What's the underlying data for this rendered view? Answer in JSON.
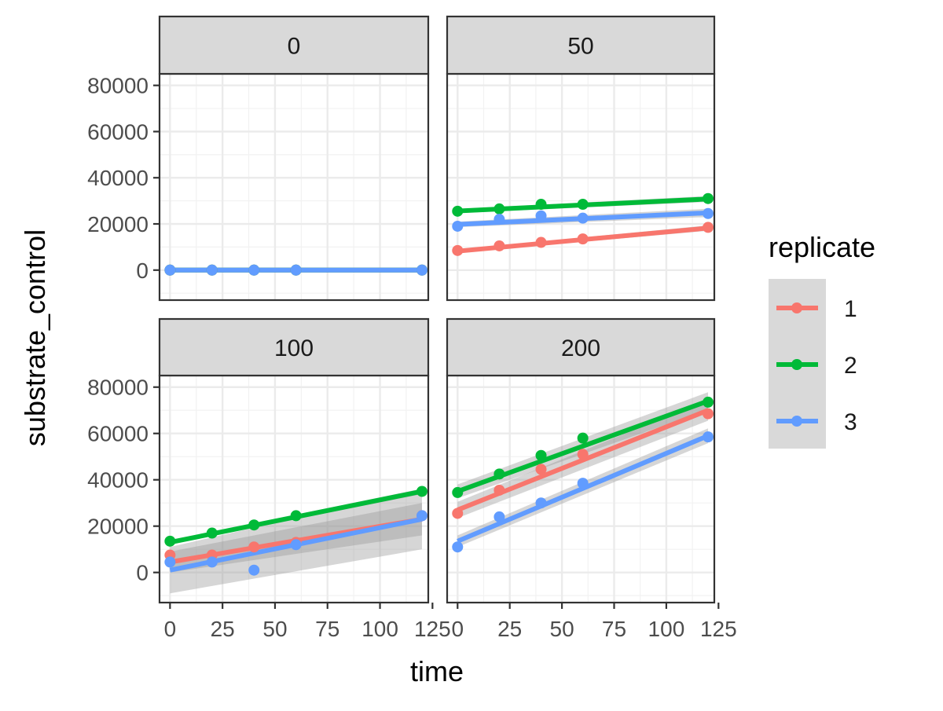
{
  "chart_data": {
    "type": "scatter",
    "faceted": true,
    "xlabel": "time",
    "ylabel": "substrate_control",
    "x_ticks": [
      0,
      25,
      50,
      75,
      100,
      125
    ],
    "y_ticks": [
      0,
      20000,
      40000,
      60000,
      80000
    ],
    "xlim": [
      -5,
      123
    ],
    "ylim": [
      -13000,
      85000
    ],
    "grid": true,
    "legend": {
      "title": "replicate",
      "placement": "right",
      "entries": [
        "1",
        "2",
        "3"
      ],
      "colors": [
        "#F8766D",
        "#00BA38",
        "#619CFF"
      ]
    },
    "facets": [
      {
        "label": "0",
        "series": [
          {
            "name": "1",
            "x": [
              0,
              20,
              40,
              60,
              120
            ],
            "y": [
              0,
              0,
              0,
              0,
              0
            ],
            "fit": [
              0,
              0
            ],
            "band": [
              0,
              0
            ]
          },
          {
            "name": "2",
            "x": [
              0,
              20,
              40,
              60,
              120
            ],
            "y": [
              0,
              0,
              0,
              0,
              0
            ],
            "fit": [
              0,
              0
            ],
            "band": [
              0,
              0
            ]
          },
          {
            "name": "3",
            "x": [
              0,
              20,
              40,
              60,
              120
            ],
            "y": [
              0,
              0,
              0,
              0,
              0
            ],
            "fit": [
              0,
              0
            ],
            "band": [
              0,
              0
            ]
          }
        ]
      },
      {
        "label": "50",
        "series": [
          {
            "name": "1",
            "x": [
              0,
              20,
              40,
              60,
              120
            ],
            "y": [
              8500,
              10500,
              12000,
              13500,
              18500
            ],
            "fit": [
              8200,
              18200
            ],
            "band": [
              700,
              1200
            ]
          },
          {
            "name": "2",
            "x": [
              0,
              20,
              40,
              60,
              120
            ],
            "y": [
              25500,
              26500,
              28500,
              28500,
              31000
            ],
            "fit": [
              25600,
              30800
            ],
            "band": [
              900,
              1300
            ]
          },
          {
            "name": "3",
            "x": [
              0,
              20,
              40,
              60,
              120
            ],
            "y": [
              19000,
              22000,
              23500,
              22500,
              24500
            ],
            "fit": [
              19800,
              24800
            ],
            "band": [
              1200,
              1800
            ]
          }
        ]
      },
      {
        "label": "100",
        "series": [
          {
            "name": "1",
            "x": [
              0,
              20,
              40,
              60,
              120
            ],
            "y": [
              7500,
              7500,
              11000,
              13000,
              24500
            ],
            "fit": [
              4500,
              23000
            ],
            "band": [
              4500,
              7000
            ]
          },
          {
            "name": "2",
            "x": [
              0,
              20,
              40,
              60,
              120
            ],
            "y": [
              13500,
              17000,
              20500,
              24500,
              35000
            ],
            "fit": [
              13000,
              35000
            ],
            "band": [
              700,
              1200
            ]
          },
          {
            "name": "3",
            "x": [
              0,
              20,
              40,
              60,
              120
            ],
            "y": [
              4500,
              4500,
              1000,
              12000,
              24500
            ],
            "fit": [
              1000,
              23000
            ],
            "band": [
              10000,
              13000
            ]
          }
        ]
      },
      {
        "label": "200",
        "series": [
          {
            "name": "1",
            "x": [
              0,
              20,
              40,
              60,
              120
            ],
            "y": [
              25500,
              35500,
              44500,
              51000,
              68500
            ],
            "fit": [
              27000,
              70000
            ],
            "band": [
              3500,
              4500
            ]
          },
          {
            "name": "2",
            "x": [
              0,
              20,
              40,
              60,
              120
            ],
            "y": [
              34500,
              42500,
              50500,
              58000,
              73500
            ],
            "fit": [
              35000,
              74000
            ],
            "band": [
              3000,
              3800
            ]
          },
          {
            "name": "3",
            "x": [
              0,
              20,
              40,
              60,
              120
            ],
            "y": [
              11000,
              24000,
              30000,
              38500,
              58500
            ],
            "fit": [
              13500,
              59000
            ],
            "band": [
              2500,
              3200
            ]
          }
        ]
      }
    ]
  }
}
